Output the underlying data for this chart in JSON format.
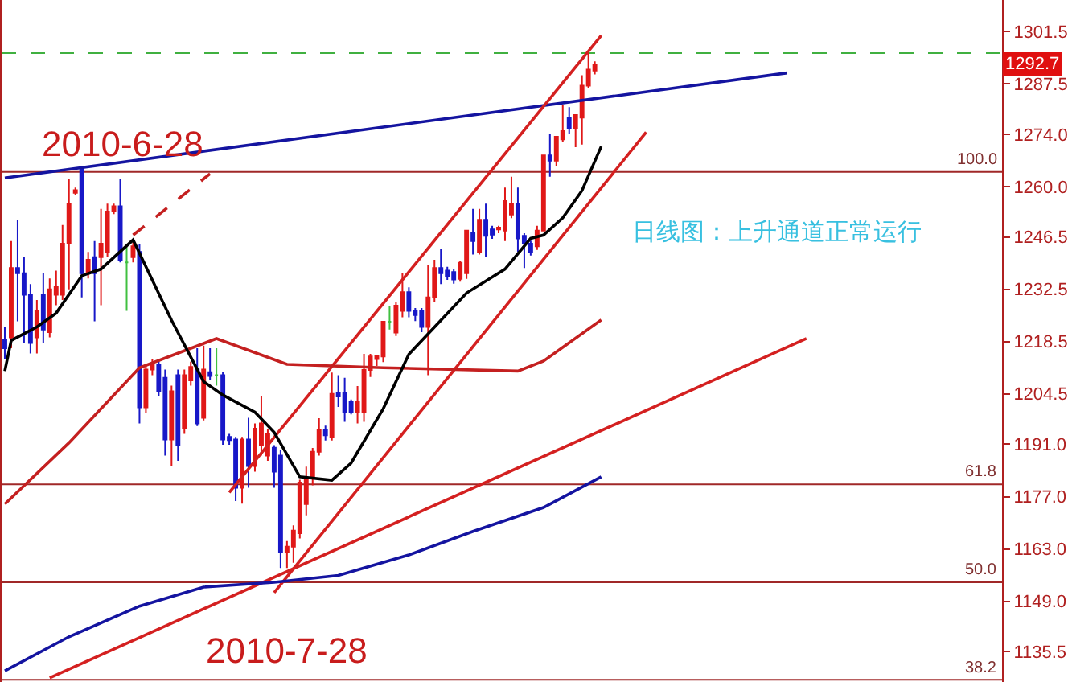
{
  "chart_data": {
    "type": "candlestick",
    "categories": [
      null,
      null,
      null,
      null,
      null,
      null,
      null,
      null,
      null,
      null,
      null,
      null,
      null,
      null,
      null,
      null,
      null,
      null,
      null,
      null,
      null,
      null,
      null,
      null,
      null,
      null,
      null,
      null,
      null,
      null,
      null,
      null,
      null,
      null,
      null,
      null,
      null,
      null,
      null,
      null,
      null,
      null,
      null,
      null,
      null,
      null,
      null,
      null,
      null,
      null,
      null,
      null,
      null,
      null,
      null,
      null,
      null,
      null,
      null,
      null,
      null,
      null,
      null,
      null,
      null,
      null,
      null,
      null,
      null,
      null,
      null,
      null,
      null,
      null,
      null,
      null,
      null,
      null,
      null,
      null,
      null,
      null,
      null,
      null,
      null,
      null,
      null,
      null,
      null,
      null,
      null,
      null,
      null,
      null,
      null,
      null,
      null,
      null,
      null,
      null,
      null,
      null,
      null,
      null,
      null,
      null,
      null,
      null,
      null,
      null,
      null,
      null,
      null,
      null,
      null,
      null,
      null,
      null,
      null,
      null,
      null,
      null,
      null,
      null,
      null,
      null,
      null,
      null,
      null,
      null,
      null,
      null,
      null,
      null,
      null,
      null,
      null,
      null,
      null,
      null,
      null,
      null,
      null,
      null,
      null,
      null,
      null,
      null,
      null,
      null,
      null,
      null,
      null,
      null,
      null,
      null
    ],
    "ohlc": [
      [
        1218.9,
        1222.5,
        1213.8,
        1216.7
      ],
      [
        1219.6,
        1245.4,
        1216.7,
        1238.2
      ],
      [
        1238.2,
        1251.1,
        1223.9,
        1236.8
      ],
      [
        1236.8,
        1241.1,
        1218.1,
        1231
      ],
      [
        1231,
        1233.9,
        1215.3,
        1218.1
      ],
      [
        1219.6,
        1229.6,
        1215.3,
        1226.7
      ],
      [
        1231,
        1236.8,
        1218.1,
        1221.7
      ],
      [
        1221,
        1235.4,
        1219.6,
        1232.5
      ],
      [
        1231,
        1237.5,
        1228.2,
        1233.2
      ],
      [
        1231,
        1249.7,
        1229.6,
        1244.7
      ],
      [
        1244.7,
        1261.9,
        1232.5,
        1255.4
      ],
      [
        1258.3,
        1259.7,
        1257.6,
        1259
      ],
      [
        1264.7,
        1264.7,
        1230.3,
        1236.8
      ],
      [
        1236.8,
        1242.5,
        1235.4,
        1240.4
      ],
      [
        1241.1,
        1245.4,
        1223.9,
        1236.8
      ],
      [
        1241.1,
        1254,
        1228.2,
        1244.7
      ],
      [
        1242.5,
        1255.4,
        1241.1,
        1253.3
      ],
      [
        1253.3,
        1255.4,
        1252.6,
        1254.7
      ],
      [
        1254.7,
        1261.9,
        1239.7,
        1240.4
      ],
      [
        1239.7,
        1244,
        1226.7,
        1239.7
      ],
      [
        1241.1,
        1245.4,
        1239.7,
        1244
      ],
      [
        1242.5,
        1244.7,
        1196.6,
        1200.9
      ],
      [
        1200.9,
        1212.4,
        1199.5,
        1211
      ],
      [
        1211,
        1213.8,
        1209.5,
        1212.4
      ],
      [
        1212.4,
        1213.8,
        1203.8,
        1205.2
      ],
      [
        1208.8,
        1211,
        1188,
        1192.3
      ],
      [
        1192.3,
        1206.7,
        1185.2,
        1205.2
      ],
      [
        1209.5,
        1211,
        1186.6,
        1190.9
      ],
      [
        1195.2,
        1211,
        1193.8,
        1209.5
      ],
      [
        1208.1,
        1213.1,
        1206.7,
        1211.7
      ],
      [
        1211,
        1216.7,
        1195.9,
        1196.6
      ],
      [
        1198.1,
        1217.4,
        1197.4,
        1211
      ],
      [
        1210.3,
        1216.7,
        1208.1,
        1209.3
      ],
      [
        1209.5,
        1216.7,
        1206.7,
        1209.5
      ],
      [
        1209.5,
        1210.3,
        1190.9,
        1192.3
      ],
      [
        1193,
        1193.8,
        1190.9,
        1192.1
      ],
      [
        1192.3,
        1193,
        1175.8,
        1179.4
      ],
      [
        1179.4,
        1193,
        1175.1,
        1192.3
      ],
      [
        1192.3,
        1198.1,
        1179.4,
        1185.2
      ],
      [
        1185.2,
        1196.6,
        1183.7,
        1195.2
      ],
      [
        1190.9,
        1203.8,
        1188,
        1196.6
      ],
      [
        1188,
        1195.2,
        1186.6,
        1193.7
      ],
      [
        1190.1,
        1190.8,
        1179.4,
        1183.7
      ],
      [
        1188,
        1189.4,
        1157.9,
        1162.2
      ],
      [
        1162.2,
        1165.1,
        1157.9,
        1163.6
      ],
      [
        1163.6,
        1169.3,
        1159.3,
        1167.9
      ],
      [
        1167.2,
        1181.5,
        1165.8,
        1180.8
      ],
      [
        1175,
        1185,
        1172,
        1182
      ],
      [
        1182,
        1190,
        1180,
        1189
      ],
      [
        1189,
        1198,
        1188,
        1195
      ],
      [
        1195,
        1196,
        1192,
        1193.4
      ],
      [
        1193,
        1210.2,
        1192,
        1204.5
      ],
      [
        1204.8,
        1209.5,
        1201,
        1203.8
      ],
      [
        1204.8,
        1208.8,
        1197,
        1199.5
      ],
      [
        1202.3,
        1203,
        1199,
        1199.5
      ],
      [
        1199.5,
        1206.6,
        1196.6,
        1202.3
      ],
      [
        1199.5,
        1215.2,
        1197,
        1210.9
      ],
      [
        1210.9,
        1215.2,
        1209,
        1214.5
      ],
      [
        1213.8,
        1215,
        1212,
        1214.8
      ],
      [
        1214.5,
        1224,
        1213,
        1223.8
      ],
      [
        1223.8,
        1228.1,
        1221.7,
        1223.8
      ],
      [
        1220.9,
        1229,
        1220,
        1228.1
      ],
      [
        1226.7,
        1236.7,
        1225,
        1231.7
      ],
      [
        1231.7,
        1233,
        1225,
        1226.7
      ],
      [
        1226.7,
        1227.5,
        1224,
        1225.6
      ],
      [
        1226.7,
        1227.5,
        1221,
        1222.4
      ],
      [
        1222.4,
        1238.9,
        1209.5,
        1230.3
      ],
      [
        1230.3,
        1240.4,
        1229,
        1238.2
      ],
      [
        1238.2,
        1243.2,
        1233.9,
        1236.8
      ],
      [
        1237.5,
        1238.5,
        1235,
        1236.1
      ],
      [
        1237.1,
        1238,
        1234,
        1235.1
      ],
      [
        1235.3,
        1240,
        1234.5,
        1239.6
      ],
      [
        1236.8,
        1248.2,
        1235.3,
        1248.2
      ],
      [
        1247.5,
        1254,
        1241.8,
        1245.4
      ],
      [
        1242.5,
        1254,
        1241.8,
        1251.1
      ],
      [
        1251.1,
        1255.4,
        1241.1,
        1246.8
      ],
      [
        1248.5,
        1249.5,
        1246,
        1247.1
      ],
      [
        1248.5,
        1249.5,
        1247.5,
        1249
      ],
      [
        1248.2,
        1259.7,
        1245.4,
        1256.1
      ],
      [
        1252.5,
        1262.6,
        1251.5,
        1255.4
      ],
      [
        1255.4,
        1259.7,
        1242.5,
        1246.1
      ],
      [
        1246.8,
        1247.5,
        1238.2,
        1244.7
      ],
      [
        1244.7,
        1245.5,
        1241.5,
        1242.5
      ],
      [
        1244,
        1249.5,
        1243,
        1248.2
      ],
      [
        1248.2,
        1268.3,
        1248.2,
        1268.3
      ],
      [
        1268.3,
        1274.1,
        1262.6,
        1266.9
      ],
      [
        1266.9,
        1273.3,
        1265.5,
        1273.3
      ],
      [
        1272.6,
        1281.9,
        1272,
        1274.8
      ],
      [
        1278.4,
        1281.2,
        1274.1,
        1275.5
      ],
      [
        1275.5,
        1279.1,
        1270.5,
        1279.1
      ],
      [
        1278.4,
        1289.8,
        1271.2,
        1287
      ],
      [
        1287,
        1296.3,
        1286.2,
        1291.3
      ],
      [
        1291,
        1293.5,
        1290,
        1292.7
      ],
      null,
      null,
      null,
      null,
      null,
      null,
      null,
      null,
      null,
      null,
      null,
      null,
      null,
      null,
      null,
      null,
      null,
      null,
      null,
      null,
      null,
      null,
      null,
      null,
      null,
      null,
      null,
      null,
      null,
      null,
      null,
      null,
      null,
      null,
      null,
      null,
      null,
      null,
      null,
      null,
      null,
      null,
      null,
      null,
      null,
      null,
      null,
      null,
      null,
      null,
      null,
      null,
      null,
      null,
      null,
      null,
      null,
      null,
      null,
      null,
      null,
      null,
      null
    ],
    "colors": [
      "#1818c8",
      "#e01818",
      "#1818c8",
      "#1818c8",
      "#1818c8",
      "#e01818",
      "#1818c8",
      "#e01818",
      "#e01818",
      "#e01818",
      "#e01818",
      "#e01818",
      "#1818c8",
      "#e01818",
      "#1818c8",
      "#e01818",
      "#e01818",
      "#e01818",
      "#1818c8",
      "#40c040",
      "#e01818",
      "#1818c8",
      "#e01818",
      "#e01818",
      "#1818c8",
      "#1818c8",
      "#e01818",
      "#1818c8",
      "#e01818",
      "#e01818",
      "#1818c8",
      "#e01818",
      "#1818c8",
      "#40c040",
      "#1818c8",
      "#1818c8",
      "#1818c8",
      "#e01818",
      "#1818c8",
      "#e01818",
      "#e01818",
      "#e01818",
      "#1818c8",
      "#1818c8",
      "#e01818",
      "#e01818",
      "#e01818",
      "#e01818",
      "#e01818",
      "#e01818",
      "#1818c8",
      "#e01818",
      "#1818c8",
      "#1818c8",
      "#1818c8",
      "#e01818",
      "#e01818",
      "#e01818",
      "#e01818",
      "#e01818",
      "#40c040",
      "#e01818",
      "#e01818",
      "#1818c8",
      "#1818c8",
      "#1818c8",
      "#e01818",
      "#e01818",
      "#1818c8",
      "#1818c8",
      "#1818c8",
      "#e01818",
      "#e01818",
      "#1818c8",
      "#e01818",
      "#1818c8",
      "#1818c8",
      "#e01818",
      "#e01818",
      "#e01818",
      "#1818c8",
      "#1818c8",
      "#1818c8",
      "#e01818",
      "#e01818",
      "#1818c8",
      "#e01818",
      "#e01818",
      "#1818c8",
      "#e01818",
      "#e01818",
      "#e01818",
      "#e01818",
      null,
      null,
      null,
      null,
      null,
      null,
      null,
      null,
      null,
      null,
      null,
      null,
      null,
      null,
      null,
      null,
      null,
      null,
      null,
      null,
      null,
      null,
      null,
      null,
      null,
      null,
      null,
      null,
      null,
      null,
      null,
      null,
      null,
      null,
      null,
      null,
      null,
      null,
      null,
      null,
      null,
      null,
      null,
      null,
      null,
      null,
      null,
      null,
      null,
      null,
      null,
      null,
      null,
      null,
      null,
      null,
      null,
      null,
      null,
      null,
      null,
      null,
      null
    ],
    "series": [
      {
        "type": "line",
        "color": "#1414a0",
        "values": [
          1262.3,
          null,
          null,
          null,
          null,
          null,
          null,
          null,
          null,
          null,
          null,
          null,
          null,
          null,
          null,
          null,
          null,
          null,
          null,
          null,
          null,
          null,
          null,
          null,
          null,
          null,
          null,
          null,
          null,
          null,
          null,
          null,
          null,
          null,
          null,
          null,
          null,
          null,
          null,
          null,
          null,
          null,
          null,
          null,
          null,
          null,
          null,
          null,
          null,
          null,
          null,
          null,
          null,
          null,
          null,
          null,
          null,
          null,
          null,
          null,
          null,
          null,
          null,
          null,
          null,
          null,
          null,
          null,
          null,
          null,
          null,
          null,
          null,
          null,
          null,
          null,
          null,
          null,
          null,
          null,
          null,
          null,
          null,
          null,
          null,
          null,
          null,
          null,
          null,
          null,
          null,
          null,
          null,
          null,
          null,
          null,
          null,
          null,
          null,
          null,
          null,
          null,
          null,
          null,
          null,
          null,
          null,
          null,
          null,
          null,
          null,
          null,
          null,
          null,
          null,
          null,
          null,
          null,
          null,
          null,
          null,
          null,
          1290.4,
          null,
          null,
          null,
          null,
          null,
          null,
          null,
          null,
          null,
          null,
          null,
          null,
          null,
          null,
          null,
          null,
          null,
          null,
          null,
          null,
          null,
          null,
          null,
          null,
          null,
          null,
          null,
          null,
          null,
          null,
          null,
          null,
          null
        ]
      },
      {
        "type": "line",
        "color": "#d42020",
        "values": [
          null,
          null,
          null,
          null,
          null,
          null,
          null,
          null,
          null,
          null,
          null,
          null,
          null,
          null,
          null,
          null,
          null,
          null,
          null,
          null,
          null,
          null,
          null,
          null,
          null,
          null,
          null,
          null,
          null,
          null,
          null,
          null,
          null,
          null,
          null,
          1178.1,
          null,
          null,
          null,
          null,
          null,
          null,
          null,
          null,
          null,
          null,
          null,
          null,
          null,
          null,
          null,
          null,
          null,
          null,
          null,
          null,
          null,
          null,
          null,
          null,
          null,
          null,
          null,
          null,
          null,
          null,
          null,
          null,
          null,
          null,
          null,
          null,
          null,
          null,
          null,
          null,
          null,
          null,
          null,
          null,
          null,
          null,
          null,
          null,
          null,
          null,
          null,
          null,
          null,
          null,
          null,
          null,
          null,
          1300.4,
          null,
          null,
          null,
          null,
          null,
          null,
          null,
          null,
          null,
          null,
          null,
          null,
          null,
          null,
          null,
          null,
          null,
          null,
          null,
          null,
          null,
          null,
          null,
          null,
          null,
          null,
          null,
          null,
          null,
          null,
          null,
          null,
          null,
          null,
          null,
          null,
          null,
          null,
          null,
          null,
          null,
          null,
          null,
          null,
          null,
          null,
          null,
          null,
          null,
          null,
          null,
          null,
          null,
          null,
          null,
          null,
          null,
          null,
          null,
          null,
          null,
          null
        ]
      },
      {
        "type": "line",
        "color": "#d42020",
        "values": [
          null,
          null,
          null,
          null,
          null,
          null,
          null,
          null,
          null,
          null,
          null,
          null,
          null,
          null,
          null,
          null,
          null,
          null,
          null,
          null,
          null,
          null,
          null,
          null,
          null,
          null,
          null,
          null,
          null,
          null,
          null,
          null,
          null,
          null,
          null,
          null,
          null,
          null,
          null,
          null,
          null,
          null,
          1151.3,
          null,
          null,
          null,
          null,
          null,
          null,
          null,
          null,
          null,
          null,
          null,
          null,
          null,
          null,
          null,
          null,
          null,
          null,
          null,
          null,
          null,
          null,
          null,
          null,
          null,
          null,
          null,
          null,
          null,
          null,
          null,
          null,
          null,
          null,
          null,
          null,
          null,
          null,
          null,
          null,
          null,
          null,
          null,
          null,
          null,
          null,
          null,
          null,
          null,
          null,
          null,
          null,
          null,
          null,
          null,
          null,
          null,
          1274.5,
          null,
          null,
          null,
          null,
          null,
          null,
          null,
          null,
          null,
          null,
          null,
          null,
          null,
          null,
          null,
          null,
          null,
          null,
          null,
          null,
          null,
          null,
          null,
          null,
          null,
          null,
          null,
          null,
          null,
          null,
          null,
          null,
          null,
          null,
          null,
          null,
          null,
          null,
          null,
          null,
          null,
          null,
          null,
          null,
          null,
          null,
          null,
          null,
          null,
          null,
          null,
          null,
          null,
          null,
          null
        ]
      },
      {
        "type": "line",
        "color": "#d42020",
        "values": [
          null,
          null,
          null,
          null,
          null,
          null,
          null,
          1128.5,
          null,
          null,
          null,
          null,
          null,
          null,
          null,
          null,
          null,
          null,
          null,
          null,
          null,
          null,
          null,
          null,
          null,
          null,
          null,
          null,
          null,
          null,
          null,
          null,
          null,
          null,
          null,
          null,
          null,
          null,
          null,
          null,
          null,
          null,
          null,
          null,
          null,
          null,
          null,
          null,
          null,
          null,
          null,
          null,
          null,
          null,
          null,
          null,
          null,
          null,
          null,
          null,
          null,
          null,
          null,
          null,
          null,
          null,
          null,
          null,
          null,
          null,
          null,
          null,
          null,
          null,
          null,
          null,
          null,
          null,
          null,
          null,
          null,
          null,
          null,
          null,
          null,
          null,
          null,
          null,
          null,
          null,
          null,
          null,
          null,
          null,
          null,
          null,
          null,
          null,
          null,
          null,
          null,
          null,
          null,
          null,
          null,
          null,
          null,
          null,
          null,
          null,
          null,
          null,
          null,
          null,
          null,
          null,
          null,
          null,
          null,
          null,
          null,
          null,
          null,
          null,
          null,
          1219.3,
          null,
          null,
          null,
          null,
          null,
          null,
          null,
          null,
          null,
          null,
          null,
          null,
          null,
          null,
          null,
          null,
          null,
          null,
          null,
          null,
          null,
          null,
          null,
          null,
          null,
          null,
          null,
          null,
          null,
          null
        ]
      },
      {
        "type": "line",
        "color": "#c42020",
        "line_style": "dashed",
        "values": [
          null,
          null,
          null,
          null,
          null,
          null,
          null,
          null,
          null,
          null,
          null,
          null,
          null,
          null,
          null,
          null,
          null,
          null,
          null,
          null,
          1247.0,
          null,
          null,
          null,
          null,
          null,
          null,
          null,
          null,
          null,
          null,
          null,
          1263.4,
          null,
          null,
          null,
          null,
          null,
          null,
          null,
          null,
          null,
          null,
          null,
          null,
          null,
          null,
          null,
          null,
          null,
          null,
          null,
          null,
          null,
          null,
          null,
          null,
          null,
          null,
          null,
          null,
          null,
          null,
          null,
          null,
          null,
          null,
          null,
          null,
          null,
          null,
          null,
          null,
          null,
          null,
          null,
          null,
          null,
          null,
          null,
          null,
          null,
          null,
          null,
          null,
          null,
          null,
          null,
          null,
          null,
          null,
          null,
          null,
          null,
          null,
          null,
          null,
          null,
          null,
          null,
          null,
          null,
          null,
          null,
          null,
          null,
          null,
          null,
          null,
          null,
          null,
          null,
          null,
          null,
          null,
          null,
          null,
          null,
          null,
          null,
          null,
          null,
          null,
          null,
          null,
          null,
          null,
          null,
          null,
          null,
          null,
          null,
          null,
          null,
          null,
          null,
          null,
          null,
          null,
          null,
          null,
          null,
          null,
          null,
          null,
          null,
          null,
          null,
          null,
          null,
          null,
          null,
          null,
          null,
          null,
          null
        ]
      },
      {
        "type": "line",
        "color": "#c42020",
        "values": [
          1175.0,
          null,
          null,
          null,
          null,
          null,
          null,
          null,
          null,
          null,
          1191.4,
          null,
          null,
          null,
          null,
          null,
          null,
          null,
          null,
          null,
          null,
          1211.5,
          null,
          null,
          null,
          null,
          null,
          null,
          null,
          null,
          null,
          null,
          null,
          1219.3,
          null,
          null,
          null,
          null,
          null,
          null,
          null,
          null,
          null,
          null,
          1212.4,
          null,
          null,
          null,
          null,
          null,
          null,
          null,
          null,
          null,
          null,
          null,
          null,
          null,
          null,
          1211.5,
          null,
          null,
          null,
          null,
          null,
          null,
          null,
          null,
          null,
          null,
          null,
          null,
          null,
          null,
          null,
          null,
          null,
          null,
          null,
          null,
          1210.6,
          null,
          null,
          null,
          1213.3,
          null,
          null,
          null,
          null,
          null,
          null,
          null,
          null,
          1224.3,
          null,
          null,
          null,
          null,
          null,
          null,
          null,
          null,
          null,
          null,
          null,
          null,
          null,
          null,
          null,
          null,
          null,
          null,
          null,
          null,
          null,
          null,
          null,
          null,
          null,
          null,
          null,
          null,
          null,
          null,
          null,
          null,
          null,
          null,
          null,
          null,
          null,
          null,
          null,
          null,
          null,
          null,
          null,
          null,
          null,
          null,
          null,
          null,
          null,
          null,
          null,
          null,
          null,
          null,
          null,
          null,
          null,
          null,
          null,
          null,
          null,
          null
        ]
      },
      {
        "type": "line",
        "color": "#000000",
        "values": [
          1210.6,
          1218.8,
          null,
          null,
          null,
          1222.4,
          null,
          null,
          1226.1,
          null,
          null,
          null,
          1236.1,
          null,
          null,
          1237.9,
          null,
          null,
          null,
          null,
          1245.7,
          null,
          null,
          null,
          null,
          null,
          1224.2,
          null,
          null,
          null,
          null,
          1207.8,
          null,
          null,
          1204.2,
          null,
          null,
          null,
          null,
          1199.6,
          null,
          null,
          1194.2,
          null,
          null,
          null,
          1182.3,
          null,
          null,
          null,
          null,
          1181.4,
          null,
          null,
          1186.0,
          null,
          null,
          null,
          null,
          1200.5,
          null,
          null,
          null,
          1215.1,
          null,
          null,
          null,
          null,
          1224.2,
          null,
          null,
          null,
          1231.5,
          null,
          null,
          null,
          null,
          null,
          1237.9,
          null,
          null,
          null,
          1246.1,
          null,
          1247.0,
          null,
          null,
          1251.6,
          null,
          null,
          1258.9,
          null,
          null,
          1270.7,
          null,
          null,
          null,
          null,
          null,
          null,
          null,
          null,
          null,
          null,
          null,
          null,
          null,
          null,
          null,
          null,
          null,
          null,
          null,
          null,
          null,
          null,
          null,
          null,
          null,
          null,
          null,
          null,
          null,
          null,
          null,
          null,
          null,
          null,
          null,
          null,
          null,
          null,
          null,
          null,
          null,
          null,
          null,
          null,
          null,
          null,
          null,
          null,
          null,
          null,
          null,
          null,
          null,
          null,
          null,
          null,
          null,
          null,
          null,
          null,
          null,
          null
        ]
      },
      {
        "type": "line",
        "color": "#1414a0",
        "values": [
          1130.4,
          null,
          null,
          null,
          null,
          null,
          null,
          null,
          null,
          null,
          1139.5,
          null,
          null,
          null,
          null,
          null,
          null,
          null,
          null,
          null,
          null,
          1147.7,
          null,
          null,
          null,
          null,
          null,
          null,
          null,
          null,
          null,
          1152.8,
          null,
          null,
          null,
          null,
          null,
          null,
          null,
          null,
          null,
          null,
          1154.1,
          null,
          null,
          null,
          null,
          null,
          null,
          null,
          null,
          null,
          1155.9,
          null,
          null,
          null,
          null,
          null,
          null,
          null,
          null,
          null,
          null,
          1161.4,
          null,
          null,
          null,
          null,
          null,
          null,
          null,
          null,
          null,
          1167.7,
          null,
          null,
          null,
          null,
          null,
          null,
          null,
          null,
          null,
          null,
          1174.1,
          null,
          null,
          null,
          null,
          null,
          null,
          null,
          null,
          1182.3,
          null,
          null,
          null,
          null,
          null,
          null,
          null,
          null,
          null,
          null,
          null,
          null,
          null,
          null,
          null,
          null,
          null,
          null,
          null,
          null,
          null,
          null,
          null,
          null,
          null,
          null,
          null,
          null,
          null,
          null,
          null,
          null,
          null,
          null,
          null,
          null,
          null,
          null,
          null,
          null,
          null,
          null,
          null,
          null,
          null,
          null,
          null,
          null,
          null,
          null,
          null,
          null,
          null,
          null,
          null,
          null,
          null,
          null,
          null,
          null,
          null,
          null
        ]
      }
    ],
    "ref_lines": [
      {
        "axis": "y",
        "value": 1263.9,
        "color": "#a02828"
      },
      {
        "axis": "y",
        "value": 1180.3,
        "color": "#a02828"
      },
      {
        "axis": "y",
        "value": 1154.1,
        "color": "#a02828"
      },
      {
        "axis": "y",
        "value": 1128.0,
        "color": "#a02828"
      },
      {
        "axis": "y",
        "value": 1295.7,
        "color": "#40b040",
        "line_style": "dashed"
      }
    ],
    "annotations": [
      "2010-6-28",
      "2010-7-28",
      "日线图：上升通道正常运行",
      {
        "text": "100.0",
        "y": 1263.9
      },
      {
        "text": "61.8",
        "y": 1180.3
      },
      {
        "text": "50.0",
        "y": 1154.1
      },
      {
        "text": "38.2",
        "y": 1128.0
      },
      {
        "text": "1292.7",
        "y": 1292.7
      }
    ],
    "ylim": [
      1127.4,
      1309.9
    ],
    "yticks": [
      1301.5,
      1287.5,
      {
        "value": 1274,
        "label": "1274.0"
      },
      {
        "value": 1260,
        "label": "1260.0"
      },
      1246.5,
      1232.5,
      1218.5,
      1204.5,
      {
        "value": 1191,
        "label": "1191.0"
      },
      {
        "value": 1177,
        "label": "1177.0"
      },
      {
        "value": 1163,
        "label": "1163.0"
      },
      {
        "value": 1149,
        "label": "1149.0"
      },
      1135.5
    ],
    "tick_labels": "y",
    "grid": false
  }
}
